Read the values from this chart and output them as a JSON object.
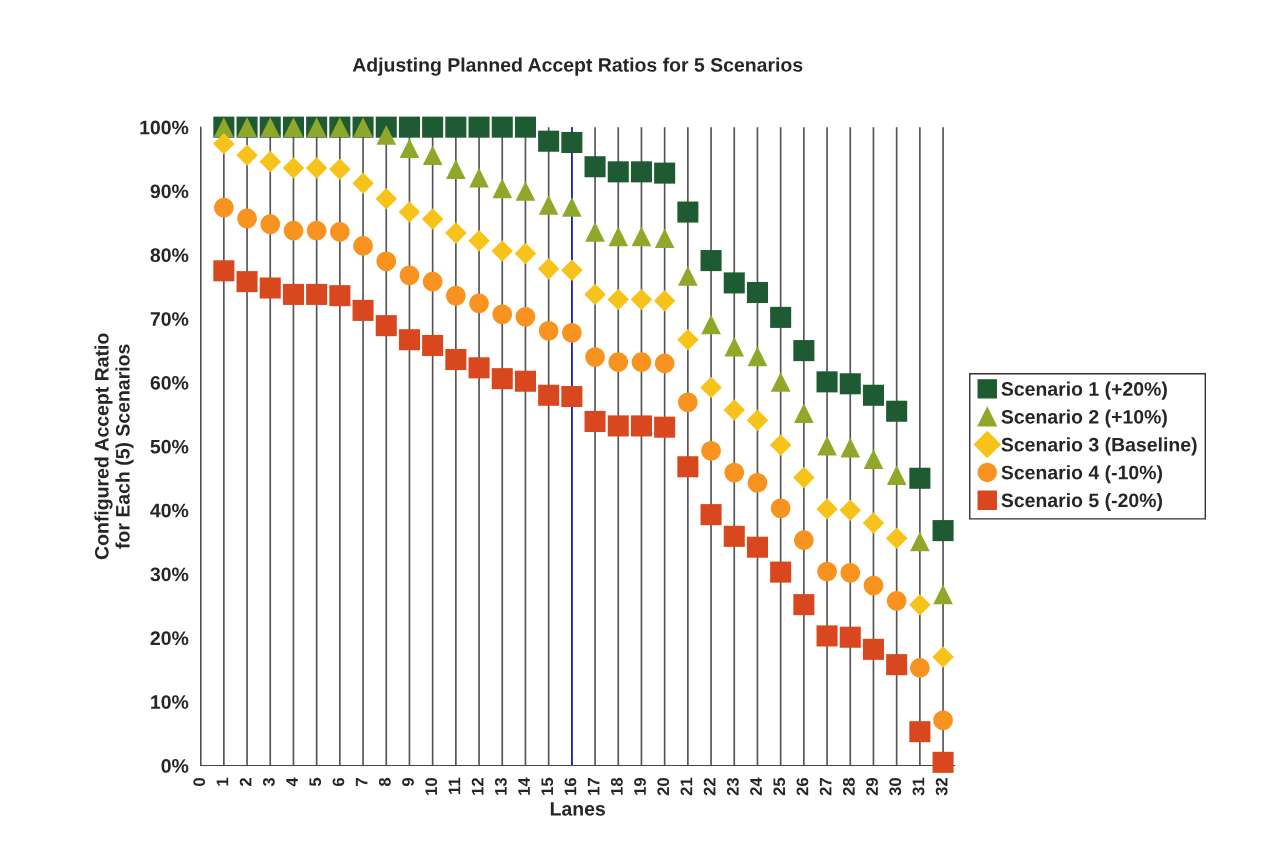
{
  "chart_data": {
    "type": "scatter",
    "title": "Adjusting Planned Accept Ratios for 5 Scenarios",
    "xlabel": "Lanes",
    "ylabel": "Configured Accept Ratio\nfor Each (5) Scenarios",
    "x": [
      1,
      2,
      3,
      4,
      5,
      6,
      7,
      8,
      9,
      10,
      11,
      12,
      13,
      14,
      15,
      16,
      17,
      18,
      19,
      20,
      21,
      22,
      23,
      24,
      25,
      26,
      27,
      28,
      29,
      30,
      31,
      32
    ],
    "series": [
      {
        "name": "Scenario 1 (+20%)",
        "color": "#1e5b32",
        "marker": "square",
        "values": [
          100,
          100,
          100,
          100,
          100,
          100,
          100,
          100,
          100,
          100,
          100,
          100,
          100,
          100,
          97.8,
          97.6,
          93.8,
          93,
          93,
          92.8,
          86.7,
          79.1,
          75.6,
          74.1,
          70.2,
          65,
          60.1,
          59.8,
          58,
          55.5,
          45,
          36.8
        ]
      },
      {
        "name": "Scenario 2 (+10%)",
        "color": "#8fa82a",
        "marker": "triangle",
        "values": [
          100,
          100,
          100,
          100,
          100,
          100,
          100,
          98.8,
          96.7,
          95.6,
          93.4,
          92.1,
          90.4,
          90,
          87.8,
          87.5,
          83.6,
          82.9,
          82.9,
          82.6,
          76.7,
          69.1,
          65.6,
          64.1,
          60.1,
          55.2,
          50.1,
          49.8,
          48,
          45.5,
          35.1,
          26.8
        ]
      },
      {
        "name": "Scenario 3 (Baseline)",
        "color": "#f7c21a",
        "marker": "diamond",
        "values": [
          97.4,
          95.6,
          94.6,
          93.6,
          93.6,
          93.4,
          91.2,
          88.8,
          86.7,
          85.6,
          83.4,
          82.2,
          80.6,
          80.2,
          77.8,
          77.6,
          73.8,
          73,
          73,
          72.8,
          66.7,
          59.2,
          55.7,
          54.1,
          50.2,
          45.1,
          40.2,
          40,
          38,
          35.6,
          25.2,
          17
        ]
      },
      {
        "name": "Scenario 4 (-10%)",
        "color": "#f7931e",
        "marker": "circle",
        "values": [
          87.4,
          85.7,
          84.8,
          83.8,
          83.8,
          83.6,
          81.4,
          79,
          76.8,
          75.8,
          73.6,
          72.4,
          70.7,
          70.3,
          68.1,
          67.8,
          64,
          63.2,
          63.2,
          63,
          56.9,
          49.3,
          45.9,
          44.3,
          40.3,
          35.3,
          30.4,
          30.2,
          28.2,
          25.8,
          15.3,
          7.1
        ]
      },
      {
        "name": "Scenario 5 (-20%)",
        "color": "#d9471e",
        "marker": "square",
        "values": [
          77.5,
          75.8,
          74.8,
          73.8,
          73.8,
          73.6,
          71.3,
          68.9,
          66.7,
          65.8,
          63.6,
          62.3,
          60.6,
          60.2,
          58,
          57.8,
          53.9,
          53.2,
          53.2,
          53,
          46.8,
          39.3,
          35.9,
          34.2,
          30.3,
          25.2,
          20.3,
          20.1,
          18.2,
          15.8,
          5.3,
          0.5
        ]
      }
    ],
    "xlim": [
      0,
      32.5
    ],
    "xticks": [
      0,
      1,
      2,
      3,
      4,
      5,
      6,
      7,
      8,
      9,
      10,
      11,
      12,
      13,
      14,
      15,
      16,
      17,
      18,
      19,
      20,
      21,
      22,
      23,
      24,
      25,
      26,
      27,
      28,
      29,
      30,
      31,
      32
    ],
    "ylim": [
      0,
      100
    ],
    "yticks": [
      {
        "value": 0,
        "label": "0%"
      },
      {
        "value": 10,
        "label": "10%"
      },
      {
        "value": 20,
        "label": "20%"
      },
      {
        "value": 30,
        "label": "30%"
      },
      {
        "value": 40,
        "label": "40%"
      },
      {
        "value": 50,
        "label": "50%"
      },
      {
        "value": 60,
        "label": "60%"
      },
      {
        "value": 70,
        "label": "70%"
      },
      {
        "value": 80,
        "label": "80%"
      },
      {
        "value": 90,
        "label": "90%"
      },
      {
        "value": 100,
        "label": "100%"
      }
    ],
    "grid": "x",
    "legend": "right",
    "ref_lines": [
      {
        "axis": "x",
        "value": 16,
        "label": null,
        "color": "#2020c0"
      }
    ]
  }
}
